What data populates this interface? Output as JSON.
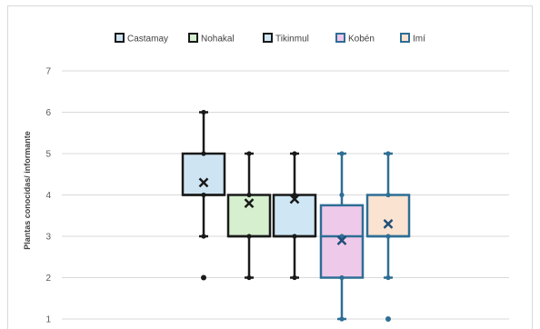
{
  "chart_data": {
    "type": "boxplot",
    "title": "",
    "xlabel": "",
    "ylabel": "Plantas conocidas/ informante",
    "ylim": [
      1,
      7
    ],
    "yticks": [
      1,
      2,
      3,
      4,
      5,
      6,
      7
    ],
    "grid": true,
    "legend_position": "top",
    "series": [
      {
        "name": "Castamay",
        "min": 3,
        "q1": 4,
        "median": 4,
        "q3": 5,
        "max": 6,
        "mean": 4.3,
        "points": [
          6,
          5,
          4,
          3
        ],
        "outliers": [
          2
        ],
        "fill": "#cfe4f3",
        "stroke": "#1a1a1a"
      },
      {
        "name": "Nohakal",
        "min": 2,
        "q1": 3,
        "median": 3,
        "q3": 4,
        "max": 5,
        "mean": 3.8,
        "points": [
          5,
          4,
          3,
          2
        ],
        "outliers": [],
        "fill": "#d6efcf",
        "stroke": "#1a1a1a"
      },
      {
        "name": "Tikinmul",
        "min": 2,
        "q1": 3,
        "median": 3,
        "q3": 4,
        "max": 5,
        "mean": 3.9,
        "points": [
          5,
          4,
          3,
          2
        ],
        "outliers": [],
        "fill": "#cfe7f5",
        "stroke": "#1a1a1a"
      },
      {
        "name": "Kobén",
        "min": 1,
        "q1": 2,
        "median": 3,
        "q3": 3.75,
        "max": 5,
        "mean": 2.9,
        "points": [
          5,
          4,
          3,
          2,
          1
        ],
        "outliers": [],
        "fill": "#efc9e9",
        "stroke": "#2e6e95"
      },
      {
        "name": "Imí",
        "min": 2,
        "q1": 3,
        "median": 3,
        "q3": 4,
        "max": 5,
        "mean": 3.3,
        "points": [
          5,
          4,
          3,
          2
        ],
        "outliers": [
          1
        ],
        "fill": "#fbe3d1",
        "stroke": "#2e6e95"
      }
    ]
  }
}
